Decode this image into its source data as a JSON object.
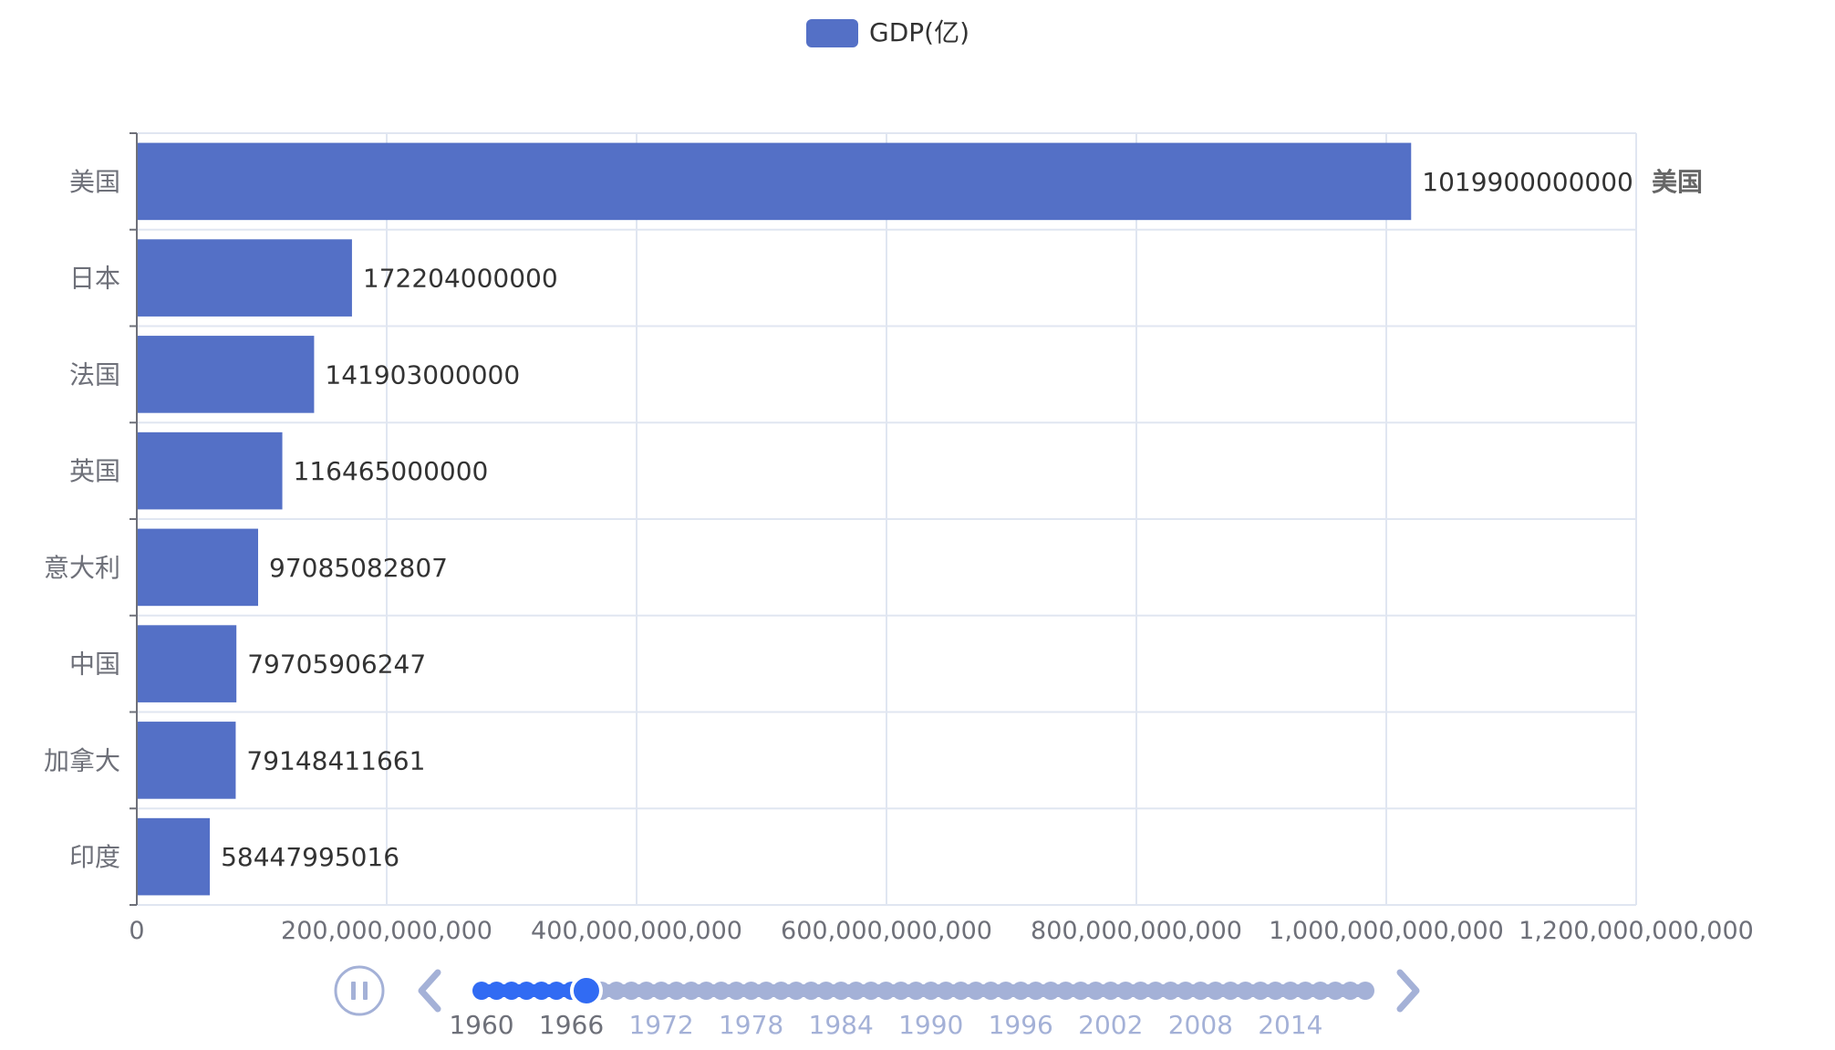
{
  "chart_data": {
    "type": "bar",
    "orientation": "horizontal",
    "legend": {
      "label": "GDP(亿)",
      "color": "#5470c6",
      "position": "top-center"
    },
    "categories": [
      "美国",
      "日本",
      "法国",
      "英国",
      "意大利",
      "中国",
      "加拿大",
      "印度"
    ],
    "values": [
      1019900000000,
      172204000000,
      141903000000,
      116465000000,
      97085082807,
      79705906247,
      79148411661,
      58447995016
    ],
    "value_labels": [
      "1019900000000",
      "172204000000",
      "141903000000",
      "116465000000",
      "97085082807",
      "79705906247",
      "79148411661",
      "58447995016"
    ],
    "right_labels": [
      "美国",
      "",
      "",
      "",
      "",
      "",
      "",
      ""
    ],
    "x_axis": {
      "min": 0,
      "max": 1200000000000,
      "ticks": [
        0,
        200000000000,
        400000000000,
        600000000000,
        800000000000,
        1000000000000,
        1200000000000
      ],
      "tick_labels": [
        "0",
        "200,000,000,000",
        "400,000,000,000",
        "600,000,000,000",
        "800,000,000,000",
        "1,000,000,000,000",
        "1,200,000,000,000"
      ]
    },
    "grid": true,
    "bar_color": "#5470c6"
  },
  "timeline": {
    "labels": [
      "1960",
      "1966",
      "1972",
      "1978",
      "1984",
      "1990",
      "1996",
      "2002",
      "2008",
      "2014"
    ],
    "start_year": 1960,
    "end_year": 2019,
    "current_year": 1967,
    "playing": true,
    "active_color": "#316bf3",
    "inactive_color": "#a4b1d7",
    "play_icon": "pause-icon",
    "prev_icon": "chevron-left-icon",
    "next_icon": "chevron-right-icon"
  }
}
